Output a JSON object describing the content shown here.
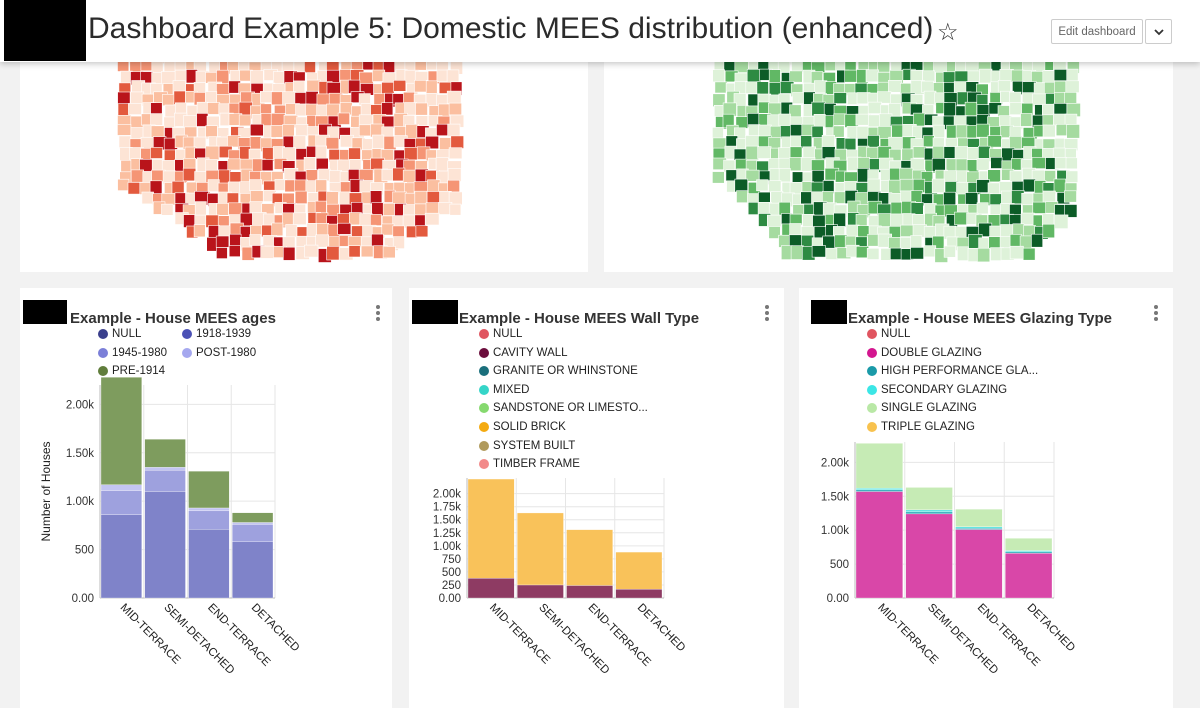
{
  "header": {
    "title": "Dashboard Example 5: Domestic MEES distribution (enhanced)",
    "star_icon": "star-outline",
    "edit_label": "Edit dashboard",
    "dropdown_icon": "chevron-down"
  },
  "maps": {
    "left": {
      "palette": [
        "#fde4d5",
        "#fbbfa0",
        "#f59575",
        "#e35a3e",
        "#b9141b"
      ]
    },
    "right": {
      "palette": [
        "#def2d9",
        "#a5dba0",
        "#61b865",
        "#2e8b43",
        "#0c5c27"
      ]
    }
  },
  "charts": [
    {
      "title": "Example - House MEES ages",
      "legend": [
        {
          "label": "NULL",
          "color": "#3a3f8c"
        },
        {
          "label": "1918-1939",
          "color": "#4b51b5"
        },
        {
          "label": "1945-1980",
          "color": "#7b7fd8"
        },
        {
          "label": "POST-1980",
          "color": "#a5a8ef"
        },
        {
          "label": "PRE-1914",
          "color": "#607d3b"
        }
      ],
      "chart_data": {
        "type": "bar",
        "stacked": true,
        "categories": [
          "MID-TERRACE",
          "SEMI-DETACHED",
          "END-TERRACE",
          "DETACHED"
        ],
        "ylabel": "Number of Houses",
        "ylim": [
          0,
          2200
        ],
        "yticks": [
          "0.00",
          "500",
          "1.00k",
          "1.50k",
          "2.00k"
        ],
        "series": [
          {
            "name": "NULL",
            "color": "#3a3f8c",
            "values": [
              0,
              0,
              0,
              0
            ]
          },
          {
            "name": "1918-1939",
            "color": "#7f83c9",
            "values": [
              860,
              1100,
              710,
              580
            ]
          },
          {
            "name": "1945-1980",
            "color": "#9ea1de",
            "values": [
              250,
              220,
              190,
              180
            ]
          },
          {
            "name": "POST-1980",
            "color": "#c3c5f2",
            "values": [
              60,
              30,
              30,
              20
            ]
          },
          {
            "name": "PRE-1914",
            "color": "#7e9c5e",
            "values": [
              1110,
              290,
              380,
              100
            ]
          }
        ]
      }
    },
    {
      "title": "Example - House MEES Wall Type",
      "legend": [
        {
          "label": "NULL",
          "color": "#e05560"
        },
        {
          "label": "CAVITY WALL",
          "color": "#6b0d3c"
        },
        {
          "label": "GRANITE OR WHINSTONE",
          "color": "#1a6f7c"
        },
        {
          "label": "MIXED",
          "color": "#35d5c8"
        },
        {
          "label": "SANDSTONE OR LIMESTO...",
          "color": "#86d96f"
        },
        {
          "label": "SOLID BRICK",
          "color": "#f4aa10"
        },
        {
          "label": "SYSTEM BUILT",
          "color": "#b09a5c"
        },
        {
          "label": "TIMBER FRAME",
          "color": "#f28a8a"
        }
      ],
      "chart_data": {
        "type": "bar",
        "stacked": true,
        "categories": [
          "MID-TERRACE",
          "SEMI-DETACHED",
          "END-TERRACE",
          "DETACHED"
        ],
        "ylim": [
          0,
          2300
        ],
        "yticks": [
          "0.00",
          "250",
          "500",
          "750",
          "1.00k",
          "1.25k",
          "1.50k",
          "1.75k",
          "2.00k"
        ],
        "series": [
          {
            "name": "CAVITY WALL",
            "color": "#8e3b63",
            "values": [
              380,
              250,
              240,
              170
            ]
          },
          {
            "name": "SOLID BRICK",
            "color": "#f9c25a",
            "values": [
              1900,
              1380,
              1070,
              710
            ]
          }
        ]
      }
    },
    {
      "title": "Example - House MEES Glazing Type",
      "legend": [
        {
          "label": "NULL",
          "color": "#e05560"
        },
        {
          "label": "DOUBLE GLAZING",
          "color": "#d3168f"
        },
        {
          "label": "HIGH PERFORMANCE GLA...",
          "color": "#1a9aa8"
        },
        {
          "label": "SECONDARY GLAZING",
          "color": "#3be6e6"
        },
        {
          "label": "SINGLE GLAZING",
          "color": "#b9e8a6"
        },
        {
          "label": "TRIPLE GLAZING",
          "color": "#f8c24e"
        }
      ],
      "chart_data": {
        "type": "bar",
        "stacked": true,
        "categories": [
          "MID-TERRACE",
          "SEMI-DETACHED",
          "END-TERRACE",
          "DETACHED"
        ],
        "ylim": [
          0,
          2300
        ],
        "yticks": [
          "0.00",
          "500",
          "1.00k",
          "1.50k",
          "2.00k"
        ],
        "series": [
          {
            "name": "DOUBLE GLAZING",
            "color": "#d947a8",
            "values": [
              1570,
              1240,
              1010,
              660
            ]
          },
          {
            "name": "HIGH PERFORMANCE GLA...",
            "color": "#3fb3bf",
            "values": [
              25,
              30,
              20,
              20
            ]
          },
          {
            "name": "SECONDARY GLAZING",
            "color": "#62e5e2",
            "values": [
              25,
              30,
              20,
              20
            ]
          },
          {
            "name": "SINGLE GLAZING",
            "color": "#c6ebb5",
            "values": [
              660,
              330,
              260,
              180
            ]
          }
        ]
      }
    }
  ]
}
